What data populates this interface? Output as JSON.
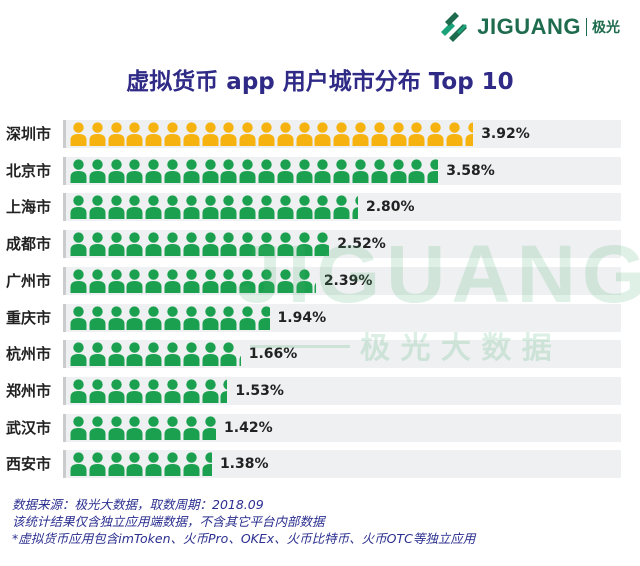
{
  "logo": {
    "name": "JIGUANG",
    "cn": "极光"
  },
  "watermark": {
    "word": "JIGUANG",
    "cn": "极 光 大 数 据"
  },
  "colors": {
    "gold": "#f6b30f",
    "green": "#1aa04e",
    "title": "#2f2a86",
    "note": "#2b2f8f"
  },
  "chart_data": {
    "type": "bar",
    "title": "虚拟货币 app 用户城市分布 Top 10",
    "categories": [
      "深圳市",
      "北京市",
      "上海市",
      "成都市",
      "广州市",
      "重庆市",
      "杭州市",
      "郑州市",
      "武汉市",
      "西安市"
    ],
    "values": [
      3.92,
      3.58,
      2.8,
      2.52,
      2.39,
      1.94,
      1.66,
      1.53,
      1.42,
      1.38
    ],
    "labels": [
      "3.92%",
      "3.58%",
      "2.80%",
      "2.52%",
      "2.39%",
      "1.94%",
      "1.66%",
      "1.53%",
      "1.42%",
      "1.38%"
    ],
    "icon_highlight": "gold for top city, green for others"
  },
  "footnotes": {
    "line1": "数据来源：极光大数据，取数周期：2018.09",
    "line2": "该统计结果仅含独立应用端数据，不含其它平台内部数据",
    "line3": "*虚拟货币应用包含imToken、火币Pro、OKEx、火币比特币、火币OTC等独立应用"
  }
}
